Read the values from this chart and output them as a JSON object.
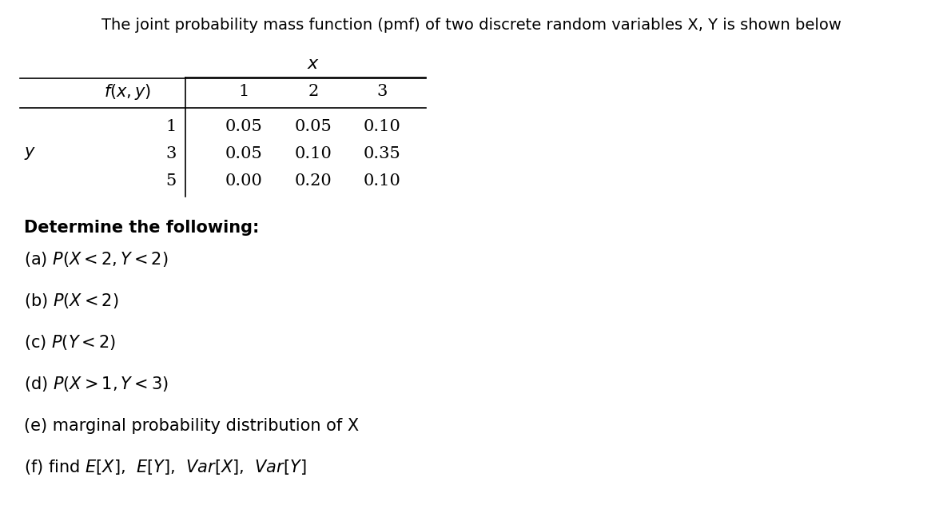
{
  "title": "The joint probability mass function (pmf) of two discrete random variables X, Y is shown below",
  "title_fontsize": 14,
  "background_color": "#ffffff",
  "table": {
    "x_vals": [
      "1",
      "2",
      "3"
    ],
    "y_vals": [
      "1",
      "3",
      "5"
    ],
    "data": [
      [
        0.05,
        0.05,
        0.1
      ],
      [
        0.05,
        0.1,
        0.35
      ],
      [
        0.0,
        0.2,
        0.1
      ]
    ]
  },
  "text_fontsize": 15,
  "label_fontsize": 15,
  "table_fontsize": 15
}
